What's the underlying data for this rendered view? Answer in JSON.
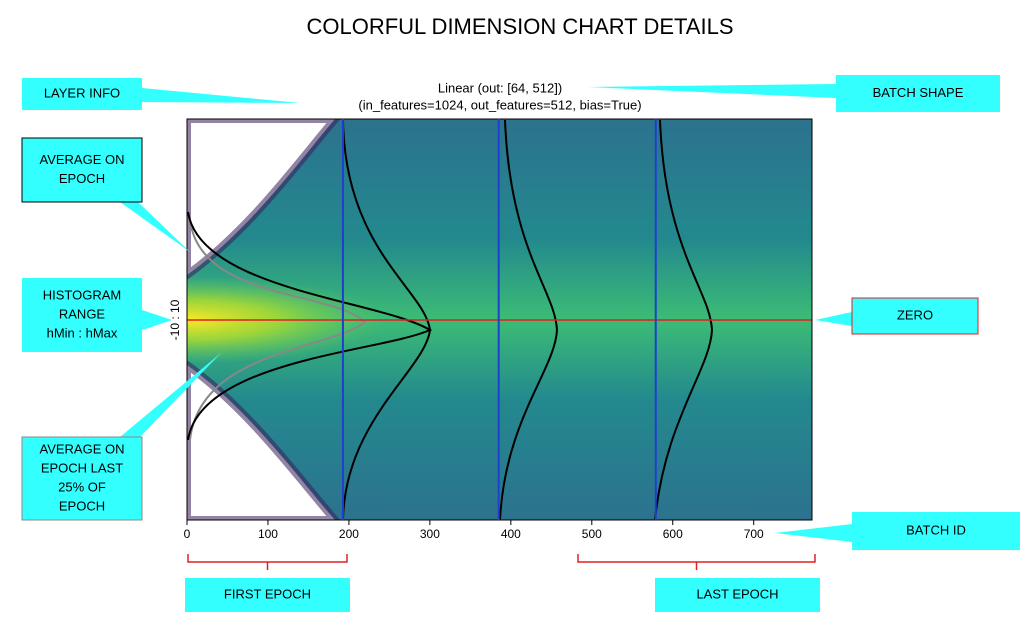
{
  "title": "COLORFUL DIMENSION CHART DETAILS",
  "chart_data": {
    "type": "heatmap",
    "title": [
      "Linear  (out: [64, 512])",
      "(in_features=1024, out_features=512, bias=True)"
    ],
    "y_label": "-10 : 10",
    "xlim": [
      0,
      772
    ],
    "xticks": [
      0,
      100,
      200,
      300,
      400,
      500,
      600,
      700
    ],
    "epoch_boundaries": [
      192.6,
      385,
      579
    ]
  },
  "callouts": [
    {
      "name": "layer-info",
      "lines": [
        "LAYER INFO"
      ]
    },
    {
      "name": "average-on-epoch",
      "lines": [
        "AVERAGE ON",
        "EPOCH"
      ]
    },
    {
      "name": "histogram-range",
      "lines": [
        "HISTOGRAM",
        "RANGE",
        "hMin : hMax"
      ]
    },
    {
      "name": "average-last-25",
      "lines": [
        "AVERAGE ON",
        "EPOCH LAST",
        "25% OF",
        "EPOCH"
      ]
    },
    {
      "name": "batch-shape",
      "lines": [
        "BATCH SHAPE"
      ]
    },
    {
      "name": "zero",
      "lines": [
        "ZERO"
      ]
    },
    {
      "name": "batch-id",
      "lines": [
        "BATCH ID"
      ]
    },
    {
      "name": "first-epoch",
      "lines": [
        "FIRST EPOCH"
      ]
    },
    {
      "name": "last-epoch",
      "lines": [
        "LAST EPOCH"
      ]
    }
  ]
}
